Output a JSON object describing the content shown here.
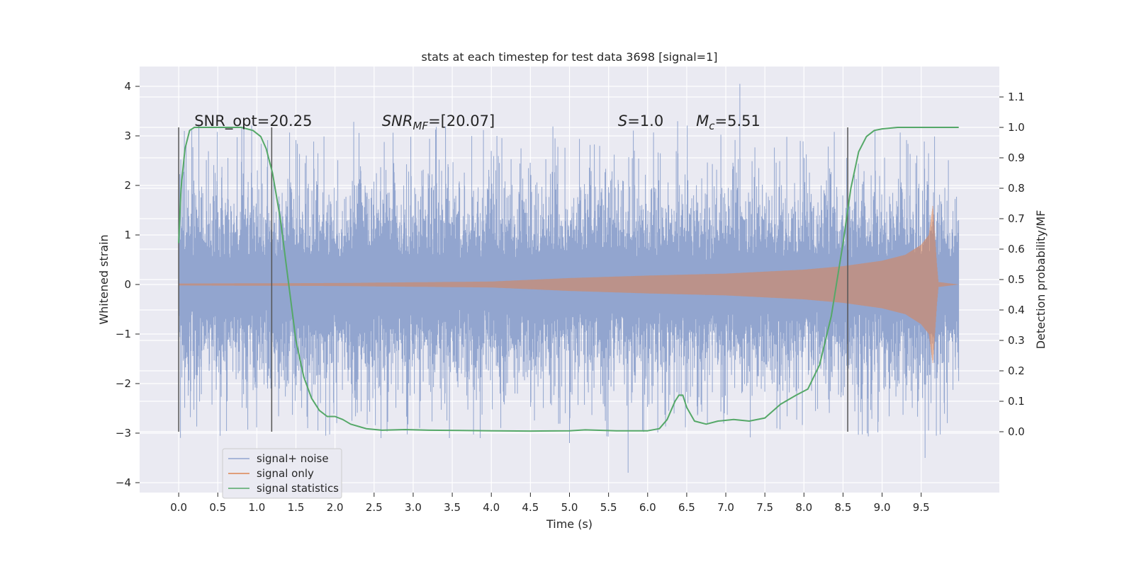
{
  "chart_data": {
    "type": "line",
    "title": "stats at each timestep for test data 3698 [signal=1]",
    "xlabel": "Time (s)",
    "ylabel": "Whitened strain",
    "ylabel_right": "Detection probability/MF",
    "xlim": [
      -0.5,
      10.5
    ],
    "ylim": [
      -4.2,
      4.4
    ],
    "ylim_right": [
      -0.2,
      1.2
    ],
    "x_ticks": [
      0.0,
      0.5,
      1.0,
      1.5,
      2.0,
      2.5,
      3.0,
      3.5,
      4.0,
      4.5,
      5.0,
      5.5,
      6.0,
      6.5,
      7.0,
      7.5,
      8.0,
      8.5,
      9.0,
      9.5
    ],
    "x_tick_labels": [
      "0.0",
      "0.5",
      "1.0",
      "1.5",
      "2.0",
      "2.5",
      "3.0",
      "3.5",
      "4.0",
      "4.5",
      "5.0",
      "5.5",
      "6.0",
      "6.5",
      "7.0",
      "7.5",
      "8.0",
      "8.5",
      "9.0",
      "9.5"
    ],
    "y_ticks": [
      -4,
      -3,
      -2,
      -1,
      0,
      1,
      2,
      3,
      4
    ],
    "y_tick_labels": [
      "−4",
      "−3",
      "−2",
      "−1",
      "0",
      "1",
      "2",
      "3",
      "4"
    ],
    "y_ticks_right": [
      0.0,
      0.1,
      0.2,
      0.3,
      0.4,
      0.5,
      0.6,
      0.7,
      0.8,
      0.9,
      1.0,
      1.1
    ],
    "y_tick_labels_right": [
      "0.0",
      "0.1",
      "0.2",
      "0.3",
      "0.4",
      "0.5",
      "0.6",
      "0.7",
      "0.8",
      "0.9",
      "1.0",
      "1.1"
    ],
    "grid": true,
    "legend_position": "lower-left",
    "series": [
      {
        "name": "signal+ noise",
        "color": "#92a5cf",
        "axis": "left",
        "description_values": {
          "x_range": [
            0.0,
            9.98
          ],
          "envelope_typical": [
            -1.6,
            1.6
          ],
          "peaks": [
            [
              7.18,
              4.05
            ],
            [
              5.75,
              -3.8
            ],
            [
              9.55,
              -3.5
            ],
            [
              5.0,
              -3.2
            ],
            [
              1.65,
              -2.9
            ]
          ]
        }
      },
      {
        "name": "signal only",
        "color": "#dd8452",
        "axis": "left",
        "envelope": {
          "x": [
            0.0,
            2.0,
            4.0,
            5.0,
            6.0,
            7.0,
            8.0,
            8.5,
            9.0,
            9.3,
            9.5,
            9.6,
            9.65,
            9.7,
            9.72,
            9.98
          ],
          "amp": [
            0.02,
            0.03,
            0.06,
            0.13,
            0.18,
            0.22,
            0.3,
            0.37,
            0.48,
            0.6,
            0.8,
            1.0,
            1.6,
            0.4,
            0.05,
            0.0
          ]
        }
      },
      {
        "name": "signal statistics",
        "color": "#55a868",
        "axis": "right",
        "x": [
          0.0,
          0.03,
          0.08,
          0.14,
          0.2,
          0.3,
          0.5,
          0.8,
          0.95,
          1.05,
          1.12,
          1.2,
          1.3,
          1.4,
          1.5,
          1.6,
          1.7,
          1.8,
          1.9,
          2.0,
          2.1,
          2.2,
          2.4,
          2.6,
          2.9,
          3.2,
          3.6,
          4.0,
          4.5,
          5.0,
          5.2,
          5.6,
          6.0,
          6.15,
          6.25,
          6.35,
          6.4,
          6.45,
          6.5,
          6.6,
          6.75,
          6.9,
          7.1,
          7.3,
          7.5,
          7.7,
          7.9,
          8.05,
          8.2,
          8.35,
          8.5,
          8.6,
          8.7,
          8.8,
          8.9,
          9.0,
          9.2,
          9.5,
          9.98
        ],
        "y": [
          0.62,
          0.8,
          0.93,
          0.99,
          1.0,
          1.0,
          1.0,
          1.0,
          0.99,
          0.97,
          0.93,
          0.85,
          0.7,
          0.5,
          0.3,
          0.18,
          0.11,
          0.07,
          0.05,
          0.05,
          0.04,
          0.025,
          0.01,
          0.005,
          0.007,
          0.005,
          0.004,
          0.003,
          0.002,
          0.003,
          0.006,
          0.003,
          0.003,
          0.01,
          0.04,
          0.1,
          0.12,
          0.12,
          0.08,
          0.035,
          0.025,
          0.035,
          0.04,
          0.035,
          0.045,
          0.09,
          0.12,
          0.14,
          0.22,
          0.38,
          0.62,
          0.8,
          0.92,
          0.97,
          0.99,
          0.995,
          1.0,
          1.0,
          1.0
        ]
      }
    ],
    "vertical_lines_x": [
      0.0,
      1.19,
      8.56
    ],
    "vertical_lines_right_range": [
      0.0,
      1.0
    ],
    "annotations": [
      {
        "text": "SNR_opt=20.25",
        "x": 0.2,
        "y_right": 1.0,
        "italic": false
      },
      {
        "text": "SNR",
        "sub": "MF",
        "rest": "=[20.07]",
        "x": 2.6,
        "y_right": 1.0,
        "italic": true
      },
      {
        "text": "S",
        "rest": "=1.0",
        "x": 5.62,
        "y_right": 1.0,
        "italic": true
      },
      {
        "text": "M",
        "sub": "c",
        "rest": "=5.51",
        "x": 6.62,
        "y_right": 1.0,
        "italic": true
      }
    ]
  }
}
